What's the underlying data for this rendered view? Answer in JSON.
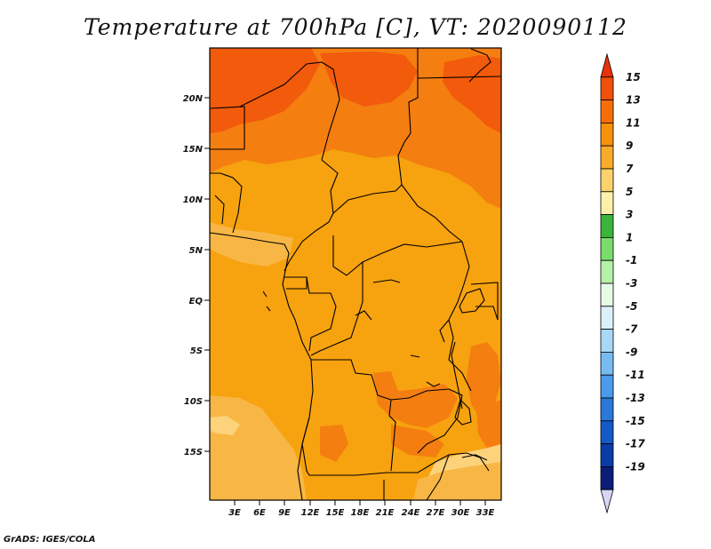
{
  "title": "Temperature at 700hPa [C], VT: 2020090112",
  "credit": "GrADS: IGES/COLA",
  "lat_labels": [
    "20N",
    "15N",
    "10N",
    "5N",
    "EQ",
    "5S",
    "10S",
    "15S"
  ],
  "lon_labels": [
    "3E",
    "6E",
    "9E",
    "12E",
    "15E",
    "18E",
    "21E",
    "24E",
    "27E",
    "30E",
    "33E"
  ],
  "colorbar": {
    "labels": [
      "15",
      "13",
      "11",
      "9",
      "7",
      "5",
      "3",
      "1",
      "-1",
      "-3",
      "-5",
      "-7",
      "-9",
      "-11",
      "-13",
      "-15",
      "-17",
      "-19"
    ],
    "colors": [
      "#e8320a",
      "#f0500a",
      "#f56e0a",
      "#f7900a",
      "#f8ac2a",
      "#fbd36a",
      "#fdf0aa",
      "#3ab43a",
      "#7adc6a",
      "#b4f0a8",
      "#e6fae6",
      "#dcf0fb",
      "#a8d8f5",
      "#78bbf0",
      "#4a9be8",
      "#2a78d8",
      "#145ac4",
      "#0a3ca8",
      "#0a1e78",
      "#d6d6f5"
    ]
  },
  "colors": {
    "base": "#f7a20f",
    "warm": "#f57e10",
    "hot": "#f25a0c",
    "cool": "#f8b645",
    "pale": "#fcd27a"
  }
}
